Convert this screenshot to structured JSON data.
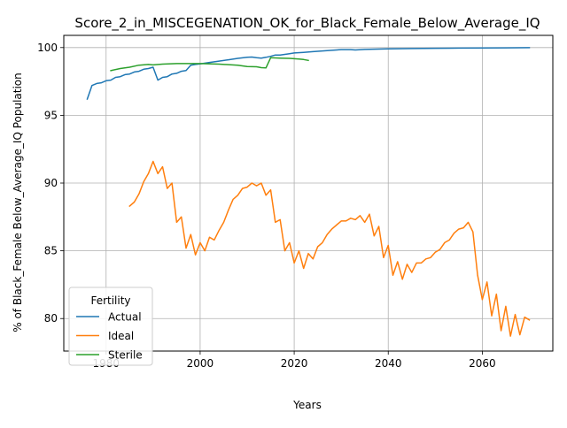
{
  "chart_data": {
    "type": "line",
    "title": "Score_2_in_MISCEGENATION_OK_for_Black_Female_Below_Average_IQ",
    "xlabel": "Years",
    "ylabel": "% of Black_Female Below_Average_IQ Population",
    "xlim": [
      1971,
      2075
    ],
    "ylim": [
      77.6,
      100.9
    ],
    "xticks": [
      1980,
      2000,
      2020,
      2040,
      2060
    ],
    "yticks": [
      80,
      85,
      90,
      95,
      100
    ],
    "grid": true,
    "legend": {
      "title": "Fertility",
      "placement": "lower-left"
    },
    "series": [
      {
        "name": "Actual",
        "color": "#1f77b4",
        "points": [
          [
            1976,
            96.2
          ],
          [
            1977,
            97.2
          ],
          [
            1978,
            97.35
          ],
          [
            1979,
            97.4
          ],
          [
            1980,
            97.55
          ],
          [
            1981,
            97.6
          ],
          [
            1982,
            97.8
          ],
          [
            1983,
            97.85
          ],
          [
            1984,
            98.0
          ],
          [
            1985,
            98.05
          ],
          [
            1986,
            98.2
          ],
          [
            1987,
            98.25
          ],
          [
            1988,
            98.4
          ],
          [
            1989,
            98.45
          ],
          [
            1990,
            98.55
          ],
          [
            1991,
            97.6
          ],
          [
            1992,
            97.8
          ],
          [
            1993,
            97.85
          ],
          [
            1994,
            98.05
          ],
          [
            1995,
            98.1
          ],
          [
            1996,
            98.25
          ],
          [
            1997,
            98.3
          ],
          [
            1998,
            98.7
          ],
          [
            1999,
            98.75
          ],
          [
            2000,
            98.8
          ],
          [
            2002,
            98.9
          ],
          [
            2004,
            99.0
          ],
          [
            2006,
            99.1
          ],
          [
            2008,
            99.2
          ],
          [
            2010,
            99.28
          ],
          [
            2011,
            99.3
          ],
          [
            2012,
            99.25
          ],
          [
            2013,
            99.22
          ],
          [
            2014,
            99.28
          ],
          [
            2015,
            99.35
          ],
          [
            2016,
            99.45
          ],
          [
            2017,
            99.45
          ],
          [
            2018,
            99.5
          ],
          [
            2019,
            99.55
          ],
          [
            2020,
            99.6
          ],
          [
            2022,
            99.65
          ],
          [
            2024,
            99.7
          ],
          [
            2026,
            99.75
          ],
          [
            2028,
            99.8
          ],
          [
            2030,
            99.85
          ],
          [
            2032,
            99.85
          ],
          [
            2033,
            99.82
          ],
          [
            2035,
            99.86
          ],
          [
            2040,
            99.9
          ],
          [
            2045,
            99.93
          ],
          [
            2050,
            99.95
          ],
          [
            2055,
            99.96
          ],
          [
            2060,
            99.97
          ],
          [
            2065,
            99.98
          ],
          [
            2070,
            99.99
          ]
        ]
      },
      {
        "name": "Ideal",
        "color": "#ff7f0e",
        "points": [
          [
            1985,
            88.3
          ],
          [
            1986,
            88.6
          ],
          [
            1987,
            89.2
          ],
          [
            1988,
            90.1
          ],
          [
            1989,
            90.7
          ],
          [
            1990,
            91.6
          ],
          [
            1991,
            90.7
          ],
          [
            1992,
            91.2
          ],
          [
            1993,
            89.6
          ],
          [
            1994,
            90.0
          ],
          [
            1995,
            87.1
          ],
          [
            1996,
            87.5
          ],
          [
            1997,
            85.2
          ],
          [
            1998,
            86.2
          ],
          [
            1999,
            84.7
          ],
          [
            2000,
            85.6
          ],
          [
            2001,
            85.0
          ],
          [
            2002,
            86.0
          ],
          [
            2003,
            85.8
          ],
          [
            2004,
            86.5
          ],
          [
            2005,
            87.1
          ],
          [
            2006,
            88.0
          ],
          [
            2007,
            88.8
          ],
          [
            2008,
            89.1
          ],
          [
            2009,
            89.6
          ],
          [
            2010,
            89.7
          ],
          [
            2011,
            90.0
          ],
          [
            2012,
            89.8
          ],
          [
            2013,
            90.0
          ],
          [
            2014,
            89.1
          ],
          [
            2015,
            89.5
          ],
          [
            2016,
            87.1
          ],
          [
            2017,
            87.3
          ],
          [
            2018,
            85.0
          ],
          [
            2019,
            85.6
          ],
          [
            2020,
            84.1
          ],
          [
            2021,
            85.0
          ],
          [
            2022,
            83.7
          ],
          [
            2023,
            84.8
          ],
          [
            2024,
            84.4
          ],
          [
            2025,
            85.3
          ],
          [
            2026,
            85.6
          ],
          [
            2027,
            86.2
          ],
          [
            2028,
            86.6
          ],
          [
            2029,
            86.9
          ],
          [
            2030,
            87.2
          ],
          [
            2031,
            87.2
          ],
          [
            2032,
            87.4
          ],
          [
            2033,
            87.3
          ],
          [
            2034,
            87.6
          ],
          [
            2035,
            87.1
          ],
          [
            2036,
            87.7
          ],
          [
            2037,
            86.1
          ],
          [
            2038,
            86.8
          ],
          [
            2039,
            84.5
          ],
          [
            2040,
            85.4
          ],
          [
            2041,
            83.2
          ],
          [
            2042,
            84.2
          ],
          [
            2043,
            82.9
          ],
          [
            2044,
            84.0
          ],
          [
            2045,
            83.4
          ],
          [
            2046,
            84.1
          ],
          [
            2047,
            84.1
          ],
          [
            2048,
            84.4
          ],
          [
            2049,
            84.5
          ],
          [
            2050,
            84.9
          ],
          [
            2051,
            85.1
          ],
          [
            2052,
            85.6
          ],
          [
            2053,
            85.8
          ],
          [
            2054,
            86.3
          ],
          [
            2055,
            86.6
          ],
          [
            2056,
            86.7
          ],
          [
            2057,
            87.1
          ],
          [
            2058,
            86.4
          ],
          [
            2059,
            83.2
          ],
          [
            2060,
            81.4
          ],
          [
            2061,
            82.7
          ],
          [
            2062,
            80.2
          ],
          [
            2063,
            81.8
          ],
          [
            2064,
            79.1
          ],
          [
            2065,
            80.9
          ],
          [
            2066,
            78.7
          ],
          [
            2067,
            80.3
          ],
          [
            2068,
            78.8
          ],
          [
            2069,
            80.1
          ],
          [
            2070,
            79.9
          ]
        ]
      },
      {
        "name": "Sterile",
        "color": "#2ca02c",
        "points": [
          [
            1981,
            98.3
          ],
          [
            1983,
            98.45
          ],
          [
            1985,
            98.55
          ],
          [
            1987,
            98.7
          ],
          [
            1989,
            98.75
          ],
          [
            1990,
            98.72
          ],
          [
            1992,
            98.78
          ],
          [
            1995,
            98.82
          ],
          [
            2000,
            98.82
          ],
          [
            2004,
            98.78
          ],
          [
            2008,
            98.7
          ],
          [
            2010,
            98.6
          ],
          [
            2012,
            98.58
          ],
          [
            2013,
            98.52
          ],
          [
            2014,
            98.5
          ],
          [
            2015,
            99.25
          ],
          [
            2017,
            99.22
          ],
          [
            2019,
            99.2
          ],
          [
            2021,
            99.15
          ],
          [
            2022,
            99.12
          ],
          [
            2023,
            99.05
          ]
        ]
      }
    ]
  }
}
